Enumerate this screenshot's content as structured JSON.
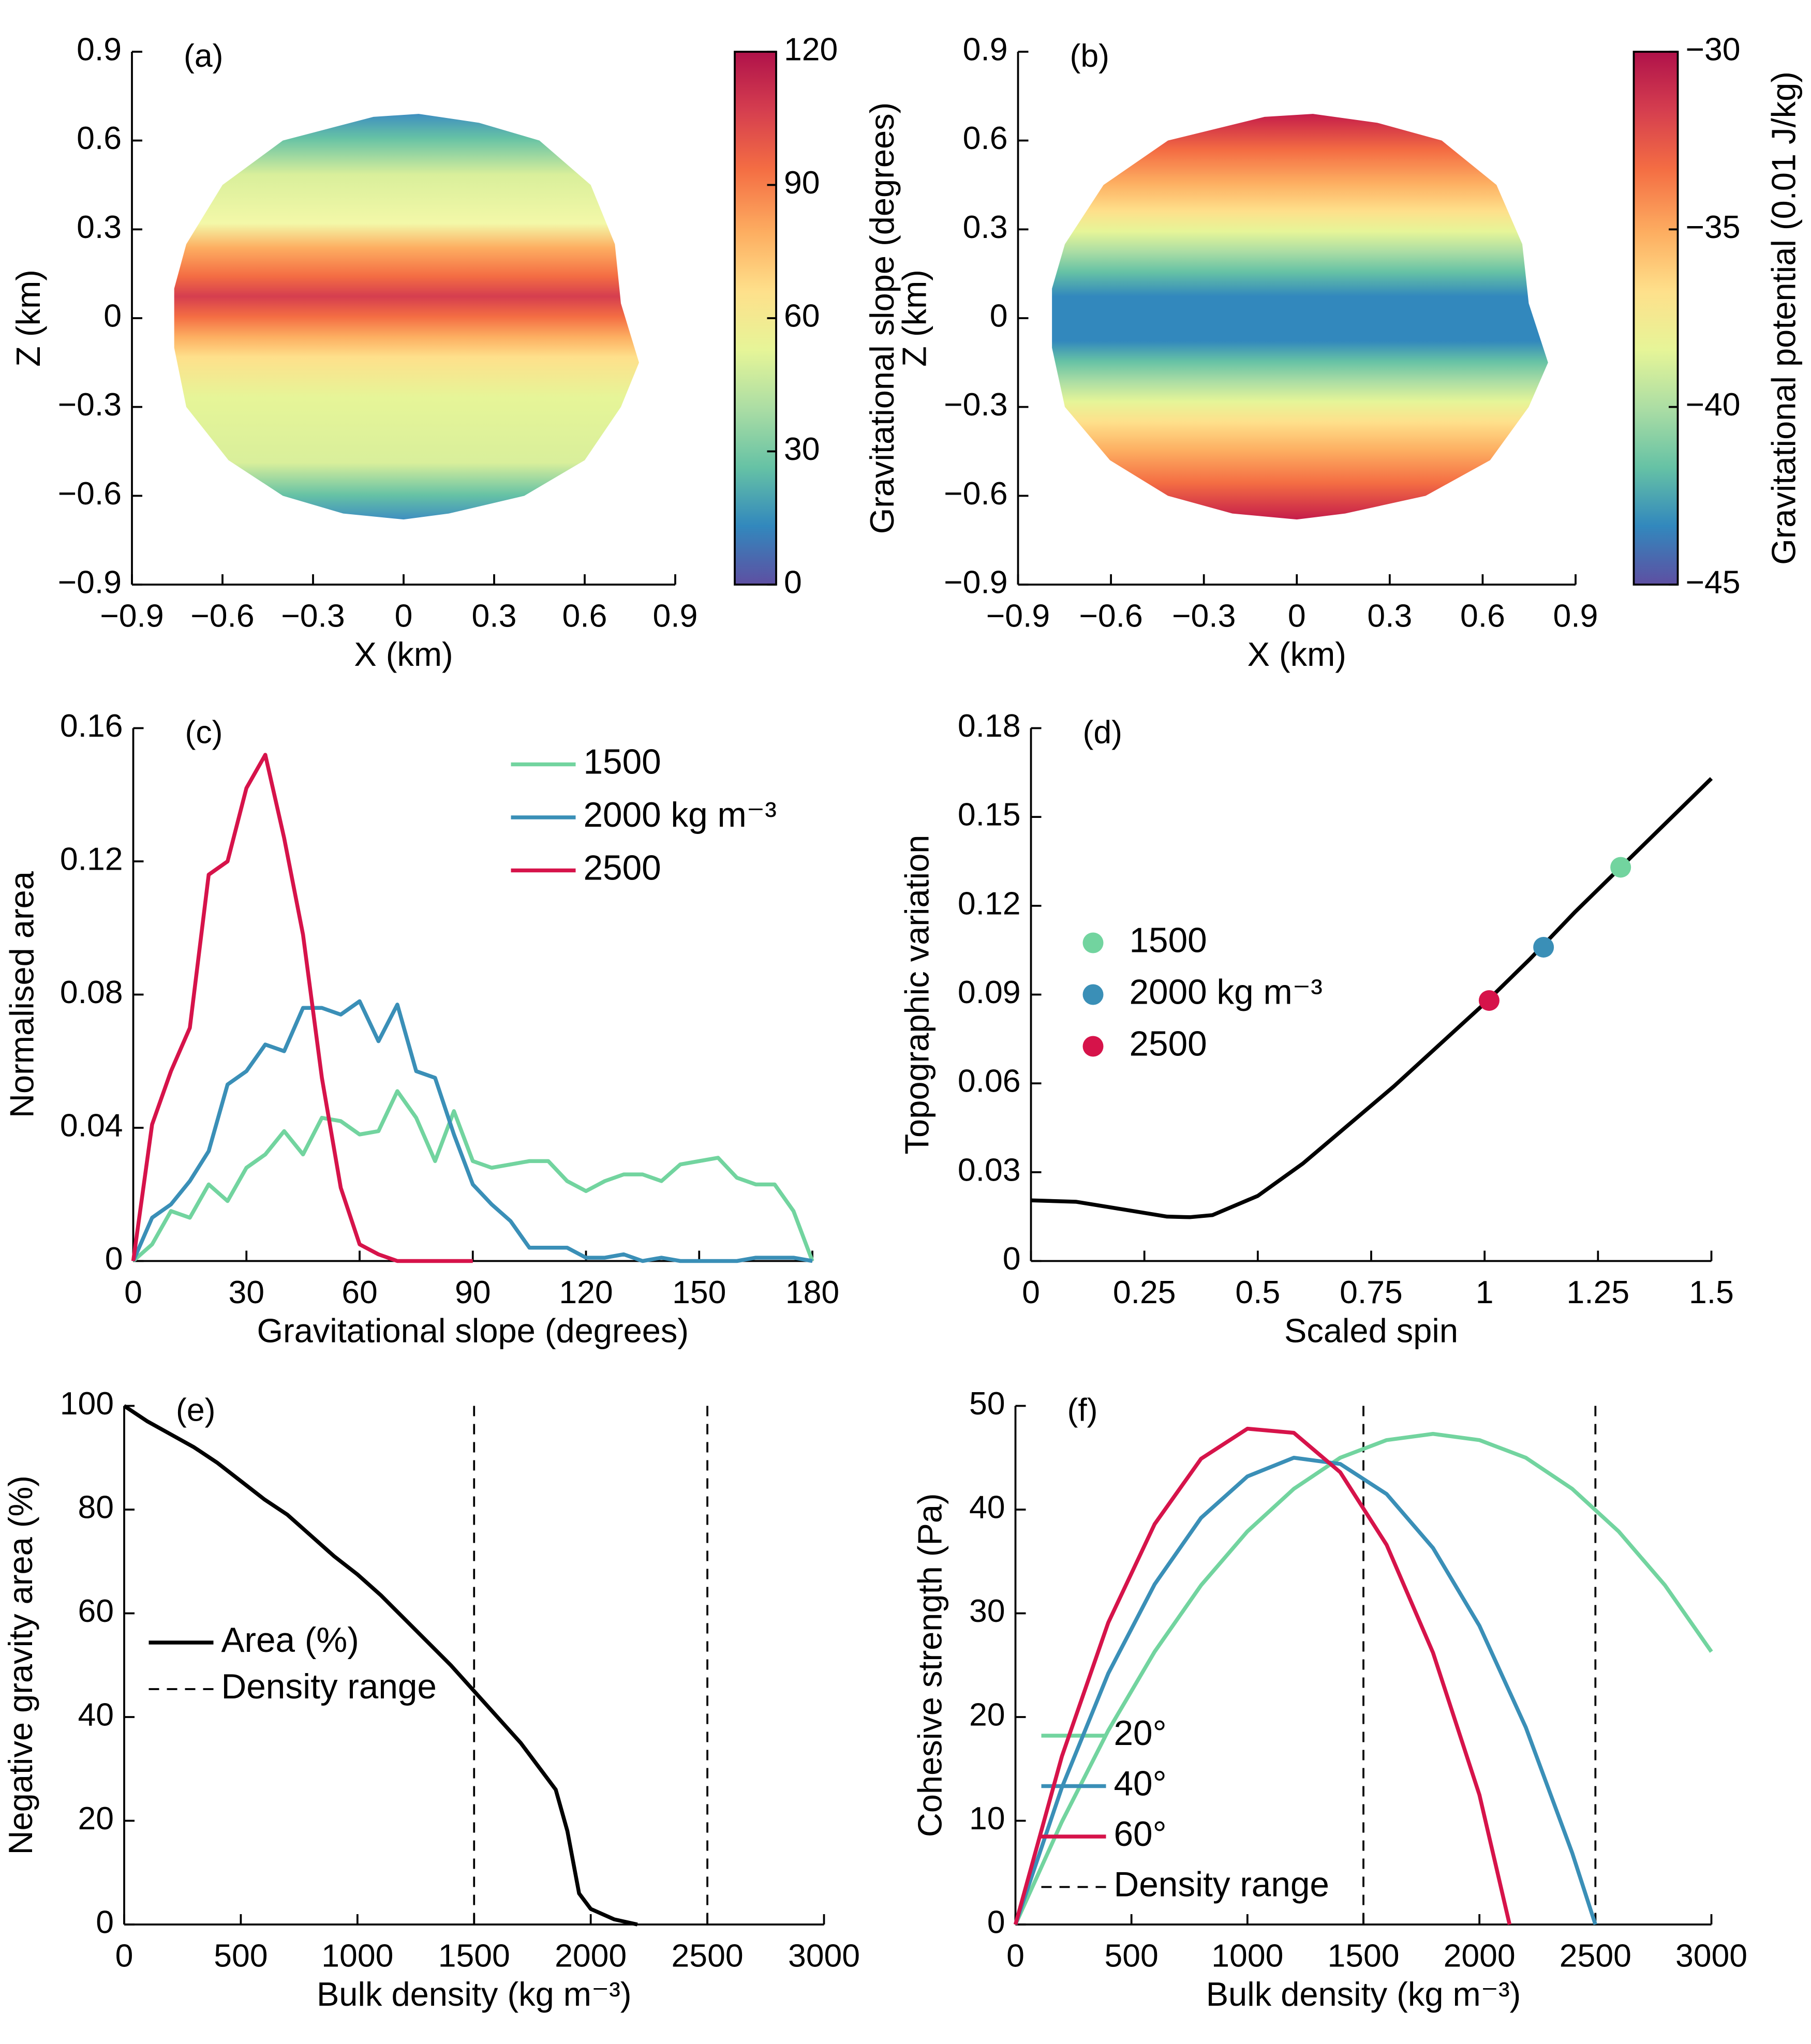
{
  "chart_data": [
    {
      "type": "mesh",
      "panel": "(a)",
      "xlabel": "X (km)",
      "ylabel": "Z (km)",
      "xlim": [
        -0.9,
        0.9
      ],
      "xticks": [
        {
          "value": -0.9,
          "label": "−0.9"
        },
        {
          "value": -0.6,
          "label": "−0.6"
        },
        {
          "value": -0.3,
          "label": "−0.3"
        },
        0,
        0.3,
        0.6,
        0.9
      ],
      "ylim": [
        -0.9,
        0.9
      ],
      "yticks": [
        {
          "value": -0.9,
          "label": "−0.9"
        },
        {
          "value": -0.6,
          "label": "−0.6"
        },
        {
          "value": -0.3,
          "label": "−0.3"
        },
        0,
        0.3,
        0.6,
        0.9
      ],
      "colorbar": {
        "label": "Gravitational slope (degrees)",
        "lim": [
          0,
          120
        ],
        "ticks": [
          0,
          30,
          60,
          90,
          120
        ]
      }
    },
    {
      "type": "mesh",
      "panel": "(b)",
      "xlabel": "X (km)",
      "ylabel": "Z (km)",
      "xlim": [
        -0.9,
        0.9
      ],
      "xticks": [
        {
          "value": -0.9,
          "label": "−0.9"
        },
        {
          "value": -0.6,
          "label": "−0.6"
        },
        {
          "value": -0.3,
          "label": "−0.3"
        },
        0,
        0.3,
        0.6,
        0.9
      ],
      "ylim": [
        -0.9,
        0.9
      ],
      "yticks": [
        {
          "value": -0.9,
          "label": "−0.9"
        },
        {
          "value": -0.6,
          "label": "−0.6"
        },
        {
          "value": -0.3,
          "label": "−0.3"
        },
        0,
        0.3,
        0.6,
        0.9
      ],
      "colorbar": {
        "label": "Gravitational potential (0.01 J/kg)",
        "lim": [
          -45,
          -30
        ],
        "ticks": [
          {
            "value": -45,
            "label": "−45"
          },
          {
            "value": -40,
            "label": "−40"
          },
          {
            "value": -35,
            "label": "−35"
          },
          {
            "value": -30,
            "label": "−30"
          }
        ]
      }
    },
    {
      "type": "line",
      "panel": "(c)",
      "xlabel": "Gravitational slope (degrees)",
      "ylabel": "Normalised area",
      "xlim": [
        0,
        180
      ],
      "xticks": [
        0,
        30,
        60,
        90,
        120,
        150,
        180
      ],
      "ylim": [
        0,
        0.16
      ],
      "yticks": [
        0,
        0.04,
        0.08,
        0.12,
        0.16
      ],
      "x": [
        0,
        5,
        10,
        15,
        20,
        25,
        30,
        35,
        40,
        45,
        50,
        55,
        60,
        65,
        70,
        75,
        80,
        85,
        90,
        95,
        100,
        105,
        110,
        115,
        120,
        125,
        130,
        135,
        140,
        145,
        150,
        155,
        160,
        165,
        170,
        175,
        180
      ],
      "series": [
        {
          "name": "1500",
          "color": "#72d49f",
          "values": [
            0,
            0.005,
            0.015,
            0.013,
            0.023,
            0.018,
            0.028,
            0.032,
            0.039,
            0.032,
            0.043,
            0.042,
            0.038,
            0.039,
            0.051,
            0.043,
            0.03,
            0.045,
            0.03,
            0.028,
            0.029,
            0.03,
            0.03,
            0.024,
            0.021,
            0.024,
            0.026,
            0.026,
            0.024,
            0.029,
            0.03,
            0.031,
            0.025,
            0.023,
            0.023,
            0.015,
            0
          ]
        },
        {
          "name": "2000 kg m⁻³",
          "color": "#3a8fb7",
          "values": [
            0,
            0.013,
            0.017,
            0.024,
            0.033,
            0.053,
            0.057,
            0.065,
            0.063,
            0.076,
            0.076,
            0.074,
            0.078,
            0.066,
            0.077,
            0.057,
            0.055,
            0.038,
            0.023,
            0.017,
            0.012,
            0.004,
            0.004,
            0.004,
            0.001,
            0.001,
            0.002,
            0,
            0.001,
            0,
            0,
            0,
            0,
            0.001,
            0.001,
            0.001,
            0
          ]
        },
        {
          "name": "2500",
          "color": "#d6134a",
          "values": [
            0,
            0.041,
            0.057,
            0.07,
            0.116,
            0.12,
            0.142,
            0.152,
            0.127,
            0.098,
            0.055,
            0.022,
            0.005,
            0.002,
            0,
            0,
            0,
            0,
            0,
            null,
            null,
            null,
            null,
            null,
            null,
            null,
            null,
            null,
            null,
            null,
            null,
            null,
            null,
            null,
            null,
            null,
            null
          ]
        }
      ]
    },
    {
      "type": "line",
      "panel": "(d)",
      "xlabel": "Scaled spin",
      "ylabel": "Topographic variation",
      "xlim": [
        0,
        1.5
      ],
      "xticks": [
        0,
        0.25,
        0.5,
        0.75,
        1,
        1.25,
        1.5
      ],
      "ylim": [
        0,
        0.18
      ],
      "yticks": [
        0,
        0.03,
        0.06,
        0.09,
        0.12,
        0.15,
        0.18
      ],
      "curve": {
        "color": "#000000",
        "x": [
          0,
          0.1,
          0.2,
          0.3,
          0.35,
          0.4,
          0.5,
          0.6,
          0.7,
          0.8,
          0.9,
          1.0,
          1.1,
          1.2,
          1.3,
          1.4,
          1.5
        ],
        "values": [
          0.0205,
          0.02,
          0.0175,
          0.015,
          0.0148,
          0.0155,
          0.022,
          0.033,
          0.046,
          0.059,
          0.073,
          0.087,
          0.102,
          0.118,
          0.133,
          0.148,
          0.163
        ]
      },
      "series": [
        {
          "name": "1500",
          "color": "#72d49f",
          "x": [
            1.3
          ],
          "values": [
            0.133
          ]
        },
        {
          "name": "2000 kg m⁻³",
          "color": "#3a8fb7",
          "x": [
            1.13
          ],
          "values": [
            0.106
          ]
        },
        {
          "name": "2500",
          "color": "#d6134a",
          "x": [
            1.01
          ],
          "values": [
            0.088
          ]
        }
      ]
    },
    {
      "type": "line",
      "panel": "(e)",
      "xlabel": "Bulk density (kg m⁻³)",
      "ylabel": "Negative gravity area (%)",
      "xlim": [
        0,
        3000
      ],
      "xticks": [
        0,
        500,
        1000,
        1500,
        2000,
        2500,
        3000
      ],
      "ylim": [
        0,
        100
      ],
      "yticks": [
        0,
        20,
        40,
        60,
        80,
        100
      ],
      "series": [
        {
          "name": "Area (%)",
          "color": "#000000",
          "x": [
            0,
            100,
            200,
            300,
            400,
            500,
            600,
            700,
            800,
            900,
            1000,
            1100,
            1200,
            1300,
            1400,
            1500,
            1600,
            1700,
            1800,
            1850,
            1900,
            1950,
            2000,
            2100,
            2200
          ],
          "values": [
            100,
            97,
            94.5,
            92,
            89,
            85.5,
            82,
            79,
            75,
            71,
            67.5,
            63.5,
            59,
            54.5,
            50,
            45,
            40,
            35,
            29,
            26,
            18,
            6,
            3,
            1,
            0
          ]
        }
      ],
      "vlines": {
        "name": "Density range",
        "x": [
          1500,
          2500
        ]
      }
    },
    {
      "type": "line",
      "panel": "(f)",
      "xlabel": "Bulk density (kg m⁻³)",
      "ylabel": "Cohesive strength (Pa)",
      "xlim": [
        0,
        3000
      ],
      "xticks": [
        0,
        500,
        1000,
        1500,
        2000,
        2500,
        3000
      ],
      "ylim": [
        0,
        50
      ],
      "yticks": [
        0,
        10,
        20,
        30,
        40,
        50
      ],
      "series": [
        {
          "name": "20°",
          "color": "#72d49f",
          "x": [
            0,
            200,
            400,
            600,
            800,
            1000,
            1200,
            1400,
            1600,
            1800,
            2000,
            2200,
            2400,
            2600,
            2800,
            3000
          ],
          "values": [
            0,
            9.9,
            18.7,
            26.3,
            32.7,
            37.9,
            42,
            45,
            46.7,
            47.3,
            46.7,
            45,
            42,
            37.9,
            32.7,
            26.3
          ]
        },
        {
          "name": "40°",
          "color": "#3a8fb7",
          "x": [
            0,
            200,
            400,
            600,
            800,
            1000,
            1200,
            1400,
            1600,
            1800,
            2000,
            2200,
            2400,
            2500
          ],
          "values": [
            0,
            13.2,
            24.2,
            32.8,
            39.2,
            43.2,
            45,
            44.4,
            41.5,
            36.3,
            28.8,
            19,
            6.9,
            0
          ]
        },
        {
          "name": "60°",
          "color": "#d6134a",
          "x": [
            0,
            200,
            400,
            600,
            800,
            1000,
            1200,
            1400,
            1600,
            1800,
            2000,
            2130
          ],
          "values": [
            0,
            16.2,
            29.1,
            38.6,
            44.9,
            47.8,
            47.4,
            43.6,
            36.6,
            26.2,
            12.5,
            0
          ]
        }
      ],
      "vlines": {
        "name": "Density range",
        "x": [
          1500,
          2500
        ]
      }
    }
  ]
}
